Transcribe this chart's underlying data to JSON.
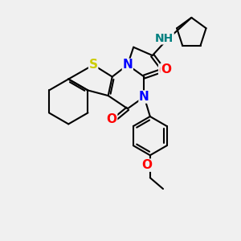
{
  "bg_color": "#f0f0f0",
  "atom_colors": {
    "S": "#cccc00",
    "N": "#0000ff",
    "O": "#ff0000",
    "H": "#008080",
    "C": "#000000"
  },
  "bond_color": "#000000",
  "bond_width": 1.5
}
